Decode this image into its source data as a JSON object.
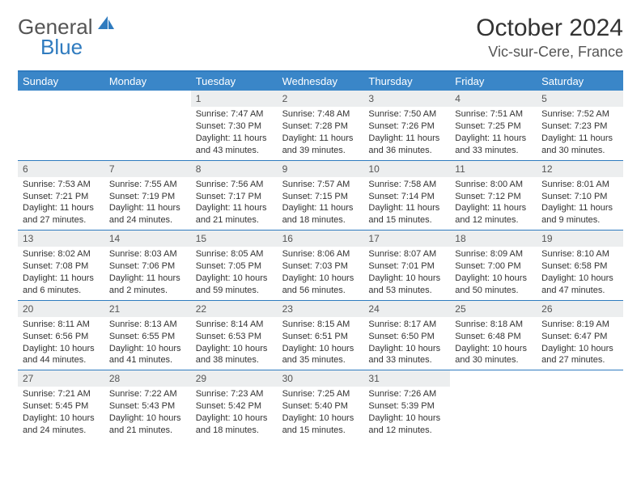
{
  "brand": {
    "name1": "General",
    "name2": "Blue",
    "sail_color": "#2f7bbf"
  },
  "title": "October 2024",
  "location": "Vic-sur-Cere, France",
  "colors": {
    "header_bg": "#3a86c8",
    "header_text": "#ffffff",
    "divider": "#2f7bbf",
    "daynum_bg": "#eceeef",
    "text": "#333333"
  },
  "day_labels": [
    "Sunday",
    "Monday",
    "Tuesday",
    "Wednesday",
    "Thursday",
    "Friday",
    "Saturday"
  ],
  "weeks": [
    [
      null,
      null,
      {
        "n": "1",
        "sr": "Sunrise: 7:47 AM",
        "ss": "Sunset: 7:30 PM",
        "dl": "Daylight: 11 hours and 43 minutes."
      },
      {
        "n": "2",
        "sr": "Sunrise: 7:48 AM",
        "ss": "Sunset: 7:28 PM",
        "dl": "Daylight: 11 hours and 39 minutes."
      },
      {
        "n": "3",
        "sr": "Sunrise: 7:50 AM",
        "ss": "Sunset: 7:26 PM",
        "dl": "Daylight: 11 hours and 36 minutes."
      },
      {
        "n": "4",
        "sr": "Sunrise: 7:51 AM",
        "ss": "Sunset: 7:25 PM",
        "dl": "Daylight: 11 hours and 33 minutes."
      },
      {
        "n": "5",
        "sr": "Sunrise: 7:52 AM",
        "ss": "Sunset: 7:23 PM",
        "dl": "Daylight: 11 hours and 30 minutes."
      }
    ],
    [
      {
        "n": "6",
        "sr": "Sunrise: 7:53 AM",
        "ss": "Sunset: 7:21 PM",
        "dl": "Daylight: 11 hours and 27 minutes."
      },
      {
        "n": "7",
        "sr": "Sunrise: 7:55 AM",
        "ss": "Sunset: 7:19 PM",
        "dl": "Daylight: 11 hours and 24 minutes."
      },
      {
        "n": "8",
        "sr": "Sunrise: 7:56 AM",
        "ss": "Sunset: 7:17 PM",
        "dl": "Daylight: 11 hours and 21 minutes."
      },
      {
        "n": "9",
        "sr": "Sunrise: 7:57 AM",
        "ss": "Sunset: 7:15 PM",
        "dl": "Daylight: 11 hours and 18 minutes."
      },
      {
        "n": "10",
        "sr": "Sunrise: 7:58 AM",
        "ss": "Sunset: 7:14 PM",
        "dl": "Daylight: 11 hours and 15 minutes."
      },
      {
        "n": "11",
        "sr": "Sunrise: 8:00 AM",
        "ss": "Sunset: 7:12 PM",
        "dl": "Daylight: 11 hours and 12 minutes."
      },
      {
        "n": "12",
        "sr": "Sunrise: 8:01 AM",
        "ss": "Sunset: 7:10 PM",
        "dl": "Daylight: 11 hours and 9 minutes."
      }
    ],
    [
      {
        "n": "13",
        "sr": "Sunrise: 8:02 AM",
        "ss": "Sunset: 7:08 PM",
        "dl": "Daylight: 11 hours and 6 minutes."
      },
      {
        "n": "14",
        "sr": "Sunrise: 8:03 AM",
        "ss": "Sunset: 7:06 PM",
        "dl": "Daylight: 11 hours and 2 minutes."
      },
      {
        "n": "15",
        "sr": "Sunrise: 8:05 AM",
        "ss": "Sunset: 7:05 PM",
        "dl": "Daylight: 10 hours and 59 minutes."
      },
      {
        "n": "16",
        "sr": "Sunrise: 8:06 AM",
        "ss": "Sunset: 7:03 PM",
        "dl": "Daylight: 10 hours and 56 minutes."
      },
      {
        "n": "17",
        "sr": "Sunrise: 8:07 AM",
        "ss": "Sunset: 7:01 PM",
        "dl": "Daylight: 10 hours and 53 minutes."
      },
      {
        "n": "18",
        "sr": "Sunrise: 8:09 AM",
        "ss": "Sunset: 7:00 PM",
        "dl": "Daylight: 10 hours and 50 minutes."
      },
      {
        "n": "19",
        "sr": "Sunrise: 8:10 AM",
        "ss": "Sunset: 6:58 PM",
        "dl": "Daylight: 10 hours and 47 minutes."
      }
    ],
    [
      {
        "n": "20",
        "sr": "Sunrise: 8:11 AM",
        "ss": "Sunset: 6:56 PM",
        "dl": "Daylight: 10 hours and 44 minutes."
      },
      {
        "n": "21",
        "sr": "Sunrise: 8:13 AM",
        "ss": "Sunset: 6:55 PM",
        "dl": "Daylight: 10 hours and 41 minutes."
      },
      {
        "n": "22",
        "sr": "Sunrise: 8:14 AM",
        "ss": "Sunset: 6:53 PM",
        "dl": "Daylight: 10 hours and 38 minutes."
      },
      {
        "n": "23",
        "sr": "Sunrise: 8:15 AM",
        "ss": "Sunset: 6:51 PM",
        "dl": "Daylight: 10 hours and 35 minutes."
      },
      {
        "n": "24",
        "sr": "Sunrise: 8:17 AM",
        "ss": "Sunset: 6:50 PM",
        "dl": "Daylight: 10 hours and 33 minutes."
      },
      {
        "n": "25",
        "sr": "Sunrise: 8:18 AM",
        "ss": "Sunset: 6:48 PM",
        "dl": "Daylight: 10 hours and 30 minutes."
      },
      {
        "n": "26",
        "sr": "Sunrise: 8:19 AM",
        "ss": "Sunset: 6:47 PM",
        "dl": "Daylight: 10 hours and 27 minutes."
      }
    ],
    [
      {
        "n": "27",
        "sr": "Sunrise: 7:21 AM",
        "ss": "Sunset: 5:45 PM",
        "dl": "Daylight: 10 hours and 24 minutes."
      },
      {
        "n": "28",
        "sr": "Sunrise: 7:22 AM",
        "ss": "Sunset: 5:43 PM",
        "dl": "Daylight: 10 hours and 21 minutes."
      },
      {
        "n": "29",
        "sr": "Sunrise: 7:23 AM",
        "ss": "Sunset: 5:42 PM",
        "dl": "Daylight: 10 hours and 18 minutes."
      },
      {
        "n": "30",
        "sr": "Sunrise: 7:25 AM",
        "ss": "Sunset: 5:40 PM",
        "dl": "Daylight: 10 hours and 15 minutes."
      },
      {
        "n": "31",
        "sr": "Sunrise: 7:26 AM",
        "ss": "Sunset: 5:39 PM",
        "dl": "Daylight: 10 hours and 12 minutes."
      },
      null,
      null
    ]
  ]
}
